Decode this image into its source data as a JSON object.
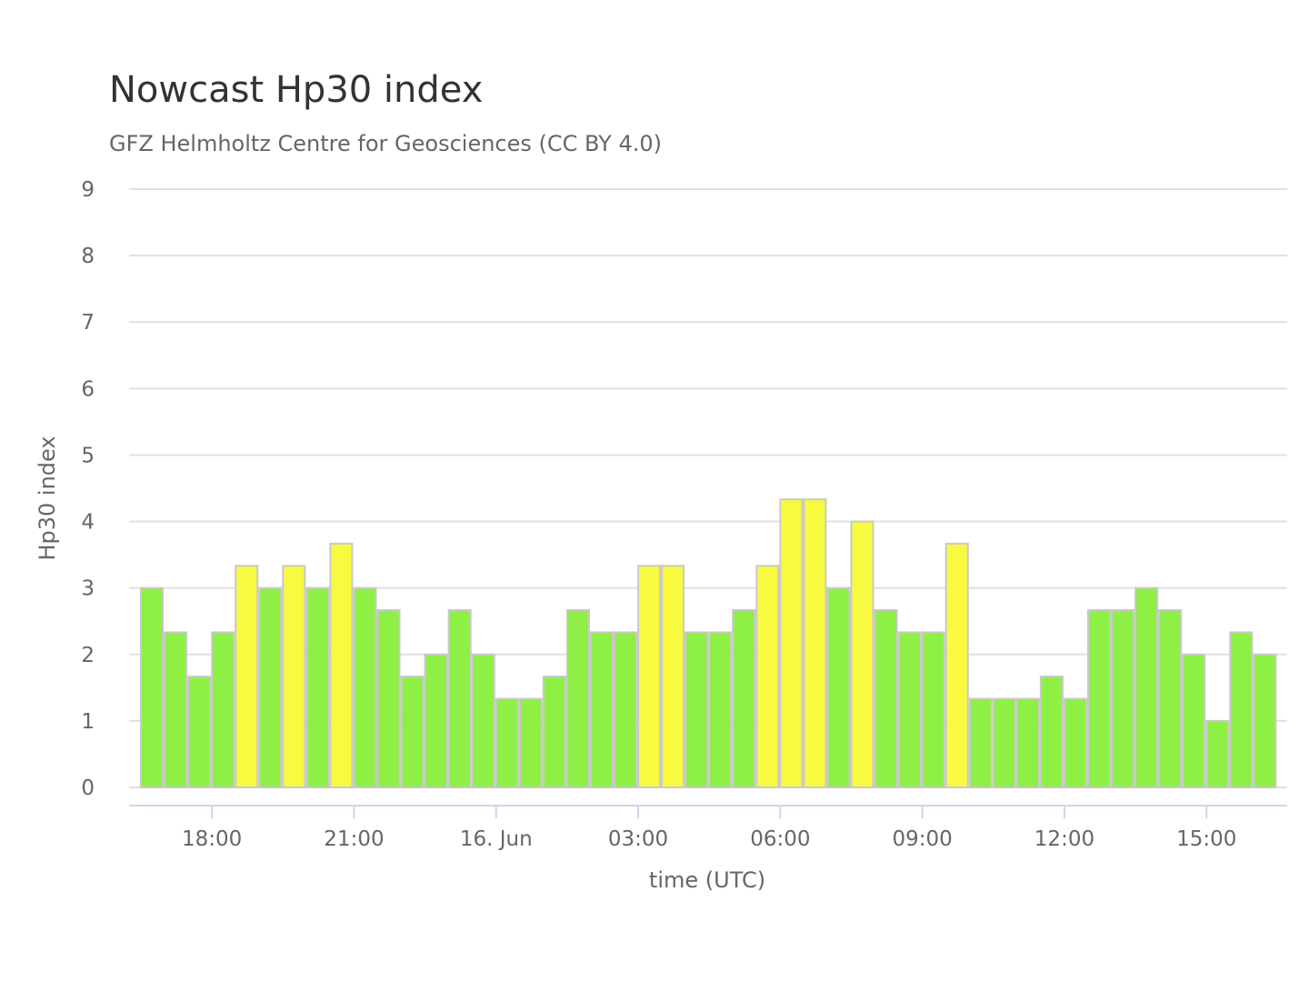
{
  "chart_data": {
    "type": "bar",
    "title": "Nowcast Hp30 index",
    "subtitle": "GFZ Helmholtz Centre for Geosciences (CC BY 4.0)",
    "xlabel": "time (UTC)",
    "ylabel": "Hp30 index",
    "ylim": [
      0,
      9
    ],
    "yticks": [
      "0",
      "1",
      "2",
      "3",
      "4",
      "5",
      "6",
      "7",
      "8",
      "9"
    ],
    "x_start": "16:30 UTC (15 Jun)",
    "interval_minutes": 30,
    "xticks": [
      {
        "label": "18:00",
        "offset_hours": 1.5
      },
      {
        "label": "21:00",
        "offset_hours": 4.5
      },
      {
        "label": "16. Jun",
        "offset_hours": 7.5
      },
      {
        "label": "03:00",
        "offset_hours": 10.5
      },
      {
        "label": "06:00",
        "offset_hours": 13.5
      },
      {
        "label": "09:00",
        "offset_hours": 16.5
      },
      {
        "label": "12:00",
        "offset_hours": 19.5
      },
      {
        "label": "15:00",
        "offset_hours": 22.5
      }
    ],
    "values": [
      3,
      2.333,
      1.667,
      2.333,
      3.333,
      3,
      3.333,
      3,
      3.667,
      3,
      2.667,
      1.667,
      2,
      2.667,
      2,
      1.333,
      1.333,
      1.667,
      2.667,
      2.333,
      2.333,
      3.333,
      3.333,
      2.333,
      2.333,
      2.667,
      3.333,
      4.333,
      4.333,
      3,
      4,
      2.667,
      2.333,
      2.333,
      3.667,
      1.333,
      1.333,
      1.333,
      1.667,
      1.333,
      2.667,
      2.667,
      3,
      2.667,
      2,
      1,
      2.333,
      2
    ],
    "grid": true,
    "colors": {
      "quiet": "#8ef045",
      "active": "#f8fa40",
      "grid": "#e0e0e0",
      "axis": "#ccd6eb",
      "bar_border": "#c9c9c9"
    },
    "color_rule": "values of 3.333 or more use the active color"
  }
}
